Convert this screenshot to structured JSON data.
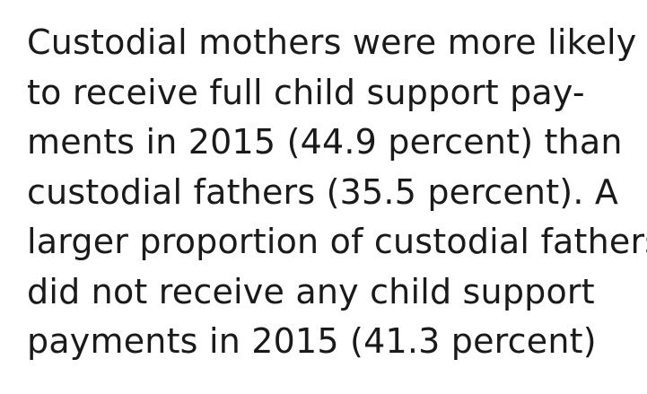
{
  "paragraph": {
    "lines": [
      "Custodial mothers were more likely",
      "to receive full child support pay-",
      "ments in 2015 (44.9 percent) than",
      "custodial fathers (35.5 percent). A",
      "larger proportion of custodial fathers",
      "did not receive any child support",
      "payments in 2015 (41.3 percent)"
    ]
  }
}
